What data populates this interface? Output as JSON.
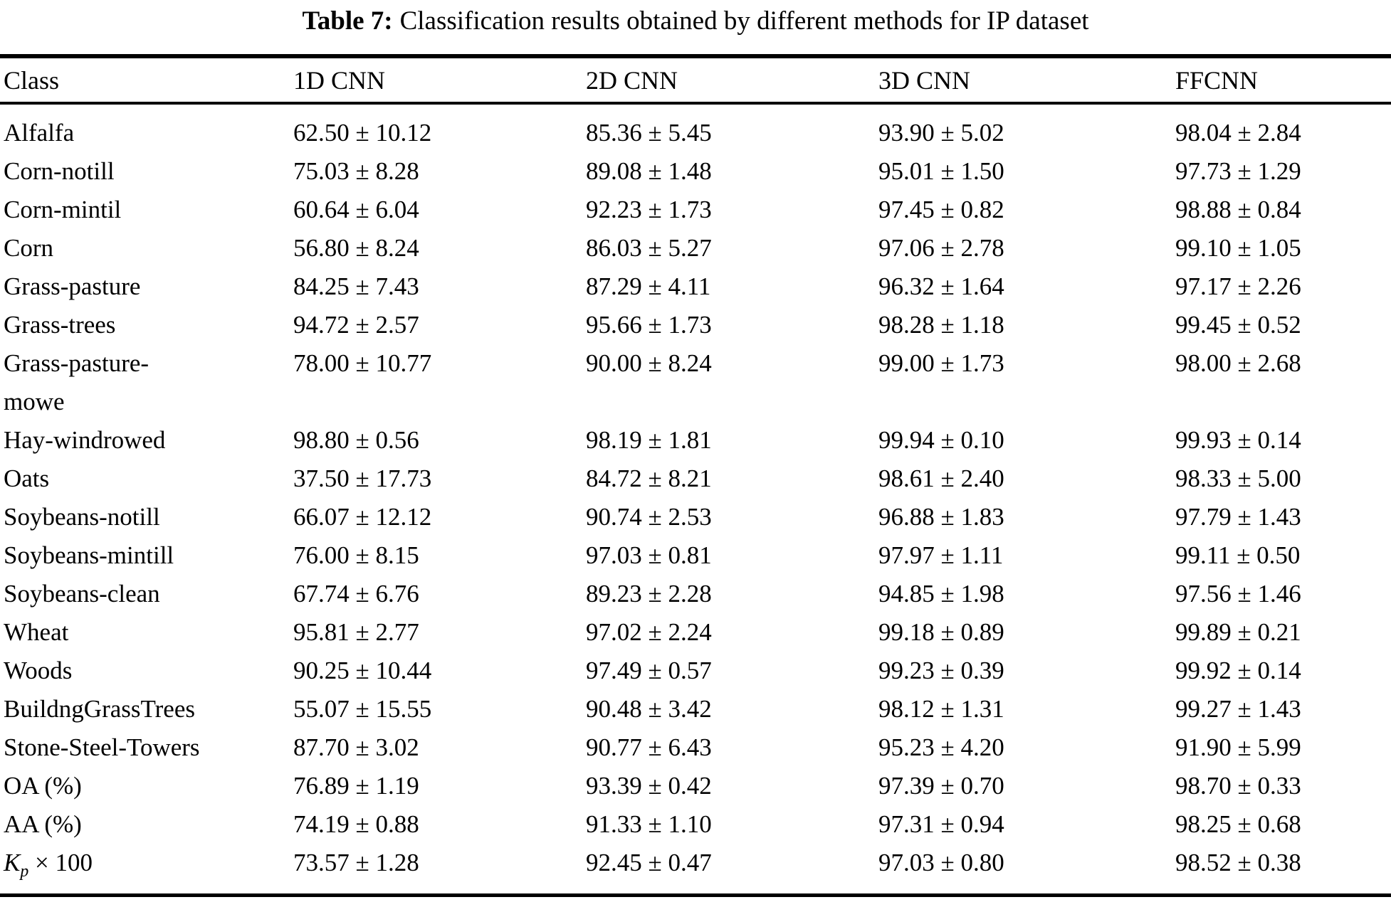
{
  "caption": {
    "label": "Table 7:",
    "text": "Classification results obtained by different methods for IP dataset"
  },
  "table": {
    "columns": [
      "Class",
      "1D CNN",
      "2D CNN",
      "3D CNN",
      "FFCNN"
    ],
    "rows": [
      {
        "label": "Alfalfa",
        "values": [
          "62.50 ± 10.12",
          "85.36 ± 5.45",
          "93.90 ± 5.02",
          "98.04 ± 2.84"
        ]
      },
      {
        "label": "Corn-notill",
        "values": [
          "75.03 ± 8.28",
          "89.08 ± 1.48",
          "95.01 ± 1.50",
          "97.73 ± 1.29"
        ]
      },
      {
        "label": "Corn-mintil",
        "values": [
          "60.64 ± 6.04",
          "92.23 ± 1.73",
          "97.45 ± 0.82",
          "98.88 ± 0.84"
        ]
      },
      {
        "label": "Corn",
        "values": [
          "56.80 ± 8.24",
          "86.03 ± 5.27",
          "97.06 ± 2.78",
          "99.10 ± 1.05"
        ]
      },
      {
        "label": "Grass-pasture",
        "values": [
          "84.25 ± 7.43",
          "87.29 ± 4.11",
          "96.32 ± 1.64",
          "97.17 ± 2.26"
        ]
      },
      {
        "label": "Grass-trees",
        "values": [
          "94.72 ± 2.57",
          "95.66 ± 1.73",
          "98.28 ± 1.18",
          "99.45 ± 0.52"
        ]
      },
      {
        "label": "Grass-pasture-\nmowe",
        "values": [
          "78.00 ± 10.77",
          "90.00 ± 8.24",
          "99.00 ± 1.73",
          "98.00 ± 2.68"
        ]
      },
      {
        "label": "Hay-windrowed",
        "values": [
          "98.80 ± 0.56",
          "98.19 ± 1.81",
          "99.94 ± 0.10",
          "99.93 ± 0.14"
        ]
      },
      {
        "label": "Oats",
        "values": [
          "37.50 ± 17.73",
          "84.72 ± 8.21",
          "98.61 ± 2.40",
          "98.33 ± 5.00"
        ]
      },
      {
        "label": "Soybeans-notill",
        "values": [
          "66.07 ± 12.12",
          "90.74 ± 2.53",
          "96.88 ± 1.83",
          "97.79 ± 1.43"
        ]
      },
      {
        "label": "Soybeans-mintill",
        "values": [
          "76.00 ± 8.15",
          "97.03 ± 0.81",
          "97.97 ± 1.11",
          "99.11 ± 0.50"
        ]
      },
      {
        "label": "Soybeans-clean",
        "values": [
          "67.74 ± 6.76",
          "89.23 ± 2.28",
          "94.85 ± 1.98",
          "97.56 ± 1.46"
        ]
      },
      {
        "label": "Wheat",
        "values": [
          "95.81 ± 2.77",
          "97.02 ± 2.24",
          "99.18 ± 0.89",
          "99.89 ± 0.21"
        ]
      },
      {
        "label": "Woods",
        "values": [
          "90.25 ± 10.44",
          "97.49 ± 0.57",
          "99.23 ± 0.39",
          "99.92 ± 0.14"
        ]
      },
      {
        "label": "BuildngGrassTrees",
        "values": [
          "55.07 ± 15.55",
          "90.48 ± 3.42",
          "98.12 ± 1.31",
          "99.27 ± 1.43"
        ]
      },
      {
        "label": "Stone-Steel-Towers",
        "values": [
          "87.70 ± 3.02",
          "90.77 ± 6.43",
          "95.23 ± 4.20",
          "91.90 ± 5.99"
        ]
      },
      {
        "label": "OA (%)",
        "values": [
          "76.89 ± 1.19",
          "93.39 ± 0.42",
          "97.39 ± 0.70",
          "98.70 ± 0.33"
        ]
      },
      {
        "label": "AA (%)",
        "values": [
          "74.19 ± 0.88",
          "91.33 ± 1.10",
          "97.31 ± 0.94",
          "98.25 ± 0.68"
        ]
      },
      {
        "label": [
          {
            "text": "K",
            "style": "italic"
          },
          {
            "text": "p",
            "style": "sub"
          },
          {
            "text": " × 100",
            "style": "normal"
          }
        ],
        "values": [
          "73.57 ± 1.28",
          "92.45 ± 0.47",
          "97.03 ± 0.80",
          "98.52 ± 0.38"
        ]
      }
    ]
  }
}
